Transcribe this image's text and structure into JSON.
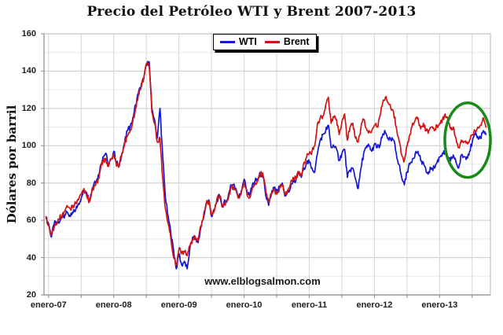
{
  "chart_data": {
    "type": "line",
    "title": "Precio del Petróleo WTI y Brent 2007-2013",
    "ylabel": "Dólares por barril",
    "watermark": "www.elblogsalmon.com",
    "grid": true,
    "legend_position": "top-center",
    "x_axis": {
      "min": 2006.93,
      "max": 2013.78,
      "gridline_step_years": 0.5,
      "ticks": [
        {
          "label": "enero-07",
          "t": 2007
        },
        {
          "label": "enero-08",
          "t": 2008
        },
        {
          "label": "enero-09",
          "t": 2009
        },
        {
          "label": "enero-10",
          "t": 2010
        },
        {
          "label": "enero-11",
          "t": 2011
        },
        {
          "label": "enero-12",
          "t": 2012
        },
        {
          "label": "enero-13",
          "t": 2013
        }
      ]
    },
    "y_axis": {
      "min": 20,
      "max": 160,
      "major_step": 20,
      "minor_step": 10,
      "tick_labels": [
        "20",
        "40",
        "60",
        "80",
        "100",
        "120",
        "140",
        "160"
      ]
    },
    "jitter_amplitude": 1.5,
    "series": [
      {
        "name": "WTI",
        "color": "#1717cf",
        "t_start": 2006.96,
        "t_step": 0.0416667,
        "values": [
          61,
          58,
          51,
          58,
          59,
          59,
          62,
          63,
          64,
          62,
          64,
          66,
          69,
          72,
          76,
          75,
          70,
          77,
          81,
          82,
          89,
          94,
          96,
          89,
          93,
          97,
          91,
          89,
          96,
          102,
          108,
          110,
          115,
          122,
          128,
          132,
          136,
          143,
          145,
          120,
          114,
          104,
          120,
          94,
          72,
          62,
          53,
          44,
          34,
          42,
          36,
          38,
          34,
          45,
          51,
          50,
          48,
          56,
          61,
          69,
          71,
          62,
          65,
          71,
          73,
          68,
          70,
          72,
          79,
          79,
          77,
          72,
          76,
          82,
          76,
          73,
          79,
          81,
          82,
          85,
          83,
          73,
          68,
          74,
          77,
          75,
          78,
          80,
          73,
          75,
          77,
          82,
          81,
          86,
          83,
          88,
          91,
          91,
          88,
          86,
          96,
          103,
          106,
          108,
          111,
          99,
          100,
          98,
          92,
          96,
          98,
          83,
          87,
          88,
          82,
          77,
          88,
          96,
          99,
          100,
          97,
          101,
          99,
          100,
          106,
          107,
          104,
          103,
          103,
          96,
          90,
          83,
          79,
          86,
          90,
          93,
          96,
          97,
          92,
          91,
          86,
          86,
          88,
          88,
          91,
          94,
          96,
          96,
          93,
          92,
          95,
          91,
          88,
          95,
          94,
          94,
          97,
          102,
          106,
          105,
          104,
          108,
          106
        ]
      },
      {
        "name": "Brent",
        "color": "#d11414",
        "t_start": 2006.96,
        "t_step": 0.0416667,
        "values": [
          62,
          57,
          52,
          56,
          58,
          61,
          63,
          65,
          67,
          66,
          68,
          69,
          71,
          74,
          77,
          73,
          70,
          76,
          79,
          80,
          87,
          92,
          93,
          89,
          93,
          95,
          89,
          90,
          96,
          101,
          105,
          108,
          113,
          120,
          127,
          131,
          136,
          144,
          143,
          118,
          112,
          102,
          104,
          82,
          66,
          58,
          50,
          40,
          36,
          45,
          43,
          43,
          41,
          46,
          50,
          51,
          49,
          57,
          62,
          69,
          70,
          63,
          66,
          72,
          73,
          67,
          68,
          71,
          77,
          78,
          76,
          72,
          75,
          80,
          74,
          72,
          77,
          79,
          81,
          85,
          84,
          75,
          70,
          74,
          76,
          74,
          77,
          79,
          74,
          76,
          79,
          83,
          82,
          86,
          84,
          91,
          94,
          96,
          97,
          100,
          112,
          115,
          116,
          122,
          126,
          112,
          115,
          114,
          106,
          113,
          117,
          103,
          110,
          112,
          104,
          102,
          110,
          114,
          109,
          108,
          108,
          111,
          110,
          116,
          123,
          126,
          123,
          120,
          118,
          110,
          103,
          95,
          92,
          100,
          106,
          112,
          114,
          115,
          109,
          112,
          108,
          108,
          110,
          108,
          111,
          112,
          114,
          117,
          114,
          109,
          110,
          104,
          99,
          103,
          102,
          102,
          103,
          106,
          108,
          110,
          111,
          115,
          110
        ]
      }
    ],
    "annotation": {
      "type": "ellipse",
      "description": "highlight of WTI-Brent price convergence in 2013",
      "center_t": 2013.43,
      "center_value": 103,
      "rx_years": 0.35,
      "ry_value": 20,
      "color": "#178a17",
      "stroke_width": 3.5
    },
    "colors": {
      "grid_major": "#c9c9c9",
      "grid_minor": "#e7e7e7",
      "grid_vertical": "#d6d6d6",
      "axis": "#999999",
      "border": "#b5b5b5",
      "text": "#111111"
    }
  }
}
